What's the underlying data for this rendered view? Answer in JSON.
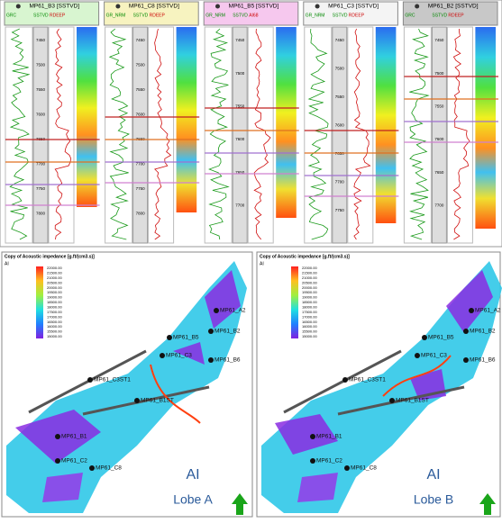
{
  "wells": [
    {
      "name": "MP61_B3 [SSTVD]",
      "header_color": "#d8f5d0",
      "tracks": [
        "GRC",
        "SSTVD",
        "RDEEP"
      ],
      "depths": [
        "7450",
        "7500",
        "7550",
        "7600",
        "7650",
        "7700",
        "7750",
        "7800"
      ]
    },
    {
      "name": "MP61_C8 [SSTVD]",
      "header_color": "#f7f3c0",
      "tracks": [
        "GR_NRM",
        "SSTVD",
        "RDEEP"
      ],
      "depths": [
        "7450",
        "7500",
        "7550",
        "7600",
        "7650",
        "7700",
        "7750",
        "7800"
      ]
    },
    {
      "name": "MP61_B5 [SSTVD]",
      "header_color": "#f6c8ee",
      "tracks": [
        "GR_NRM",
        "SSTVD",
        "AI68"
      ],
      "depths": [
        "7450",
        "7500",
        "7550",
        "7600",
        "7650",
        "7700"
      ]
    },
    {
      "name": "MP61_C3 [SSTVD]",
      "header_color": "#f4f4f4",
      "tracks": [
        "GR_NRM",
        "SSTVD",
        "RDEEP"
      ],
      "depths": [
        "7450",
        "7500",
        "7550",
        "7600",
        "7650",
        "7700",
        "7750"
      ]
    },
    {
      "name": "MP61_B2 [SSTVD]",
      "header_color": "#c8c8c8",
      "tracks": [
        "GRC",
        "SSTVD",
        "RDEEP"
      ],
      "depths": [
        "7450",
        "7500",
        "7550",
        "7600",
        "7650",
        "7700"
      ]
    }
  ],
  "maps": [
    {
      "title": "Copy of Acoustic impedance [g.ft/(cm3.s)]",
      "legend_label": "AI",
      "colorbar": [
        "22000.00",
        "21500.00",
        "21000.00",
        "20500.00",
        "20000.00",
        "19500.00",
        "19000.00",
        "18500.00",
        "18000.00",
        "17500.00",
        "17000.00",
        "16500.00",
        "16000.00",
        "15500.00",
        "15000.00"
      ],
      "wells": [
        "MP61_A2",
        "MP61_B2",
        "MP61_B5",
        "MP61_C3",
        "MP61_B6",
        "MP61_C3ST1",
        "MP61_B1ST",
        "MP61_B1",
        "MP61_C2",
        "MP61_C8"
      ],
      "caption_top": "AI",
      "caption": "Lobe A"
    },
    {
      "title": "Copy of Acoustic impedance [g.ft/(cm3.s)]",
      "legend_label": "AI",
      "colorbar": [
        "22000.00",
        "21500.00",
        "21000.00",
        "20500.00",
        "20000.00",
        "19500.00",
        "19000.00",
        "18500.00",
        "18000.00",
        "17500.00",
        "17000.00",
        "16500.00",
        "16000.00",
        "15500.00",
        "15000.00"
      ],
      "wells": [
        "MP61_A2",
        "MP61_B2",
        "MP61_B5",
        "MP61_C3",
        "MP61_B6",
        "MP61_C3ST1",
        "MP61_B1ST",
        "MP61_B1",
        "MP61_C2",
        "MP61_C8"
      ],
      "caption_top": "AI",
      "caption": "Lobe B"
    }
  ]
}
